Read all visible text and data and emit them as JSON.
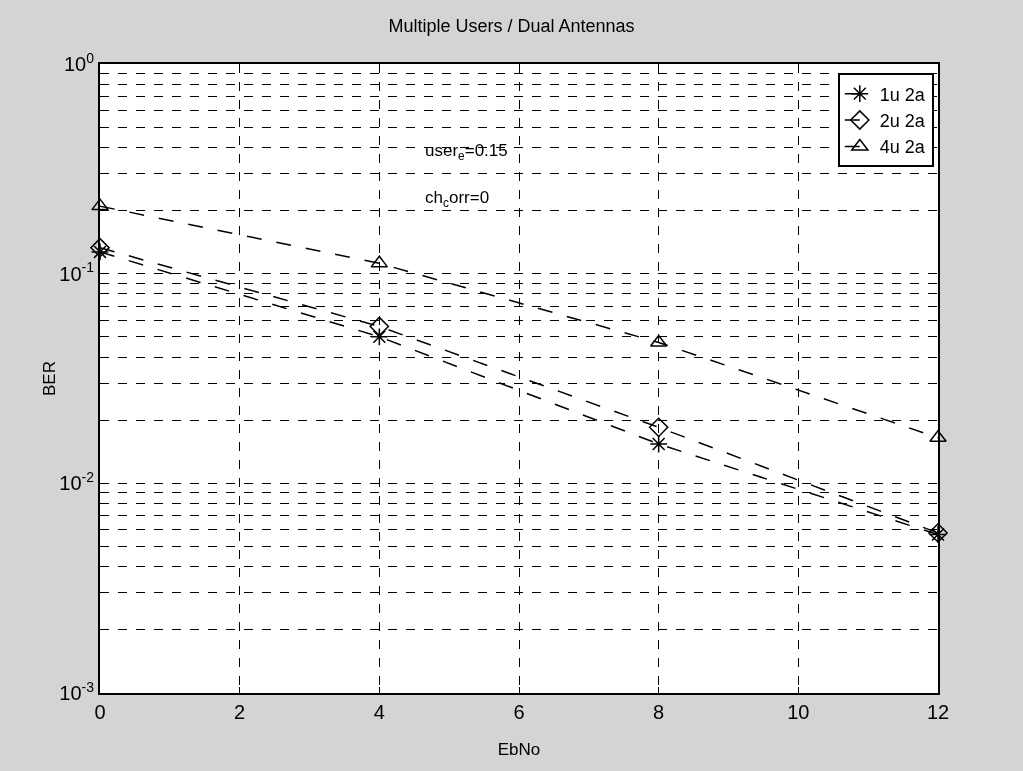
{
  "chart_data": {
    "type": "line",
    "title": "Multiple Users / Dual Antennas",
    "xlabel": "EbNo",
    "ylabel": "BER",
    "x": [
      0,
      4,
      8,
      12
    ],
    "series": [
      {
        "name": "1u 2a",
        "color": "#000000",
        "marker": "cross",
        "values": [
          0.127,
          0.05,
          0.0154,
          0.0057
        ]
      },
      {
        "name": "2u 2a",
        "color": "#000000",
        "marker": "diamond",
        "values": [
          0.133,
          0.056,
          0.0185,
          0.0058
        ]
      },
      {
        "name": "4u 2a",
        "color": "#000000",
        "marker": "triangle",
        "values": [
          0.21,
          0.112,
          0.047,
          0.0165
        ]
      }
    ],
    "log": "y",
    "xlim": [
      0,
      12
    ],
    "xticks": [
      0,
      2,
      4,
      6,
      8,
      10,
      12
    ],
    "ylim": [
      0.001,
      1
    ],
    "yticks": [
      {
        "value": 0.001,
        "label": "10$^{-3}$"
      },
      {
        "value": 0.01,
        "label": "10$^{-2}$"
      },
      {
        "value": 0.1,
        "label": "10$^{-1}$"
      },
      {
        "value": 1,
        "label": "10$^{0}$"
      }
    ],
    "grid": true,
    "legend": "top right",
    "line_style": "dashed",
    "annotations": [
      "user$_{e}$=0.15",
      "ch$_{c}$orr=0"
    ]
  }
}
